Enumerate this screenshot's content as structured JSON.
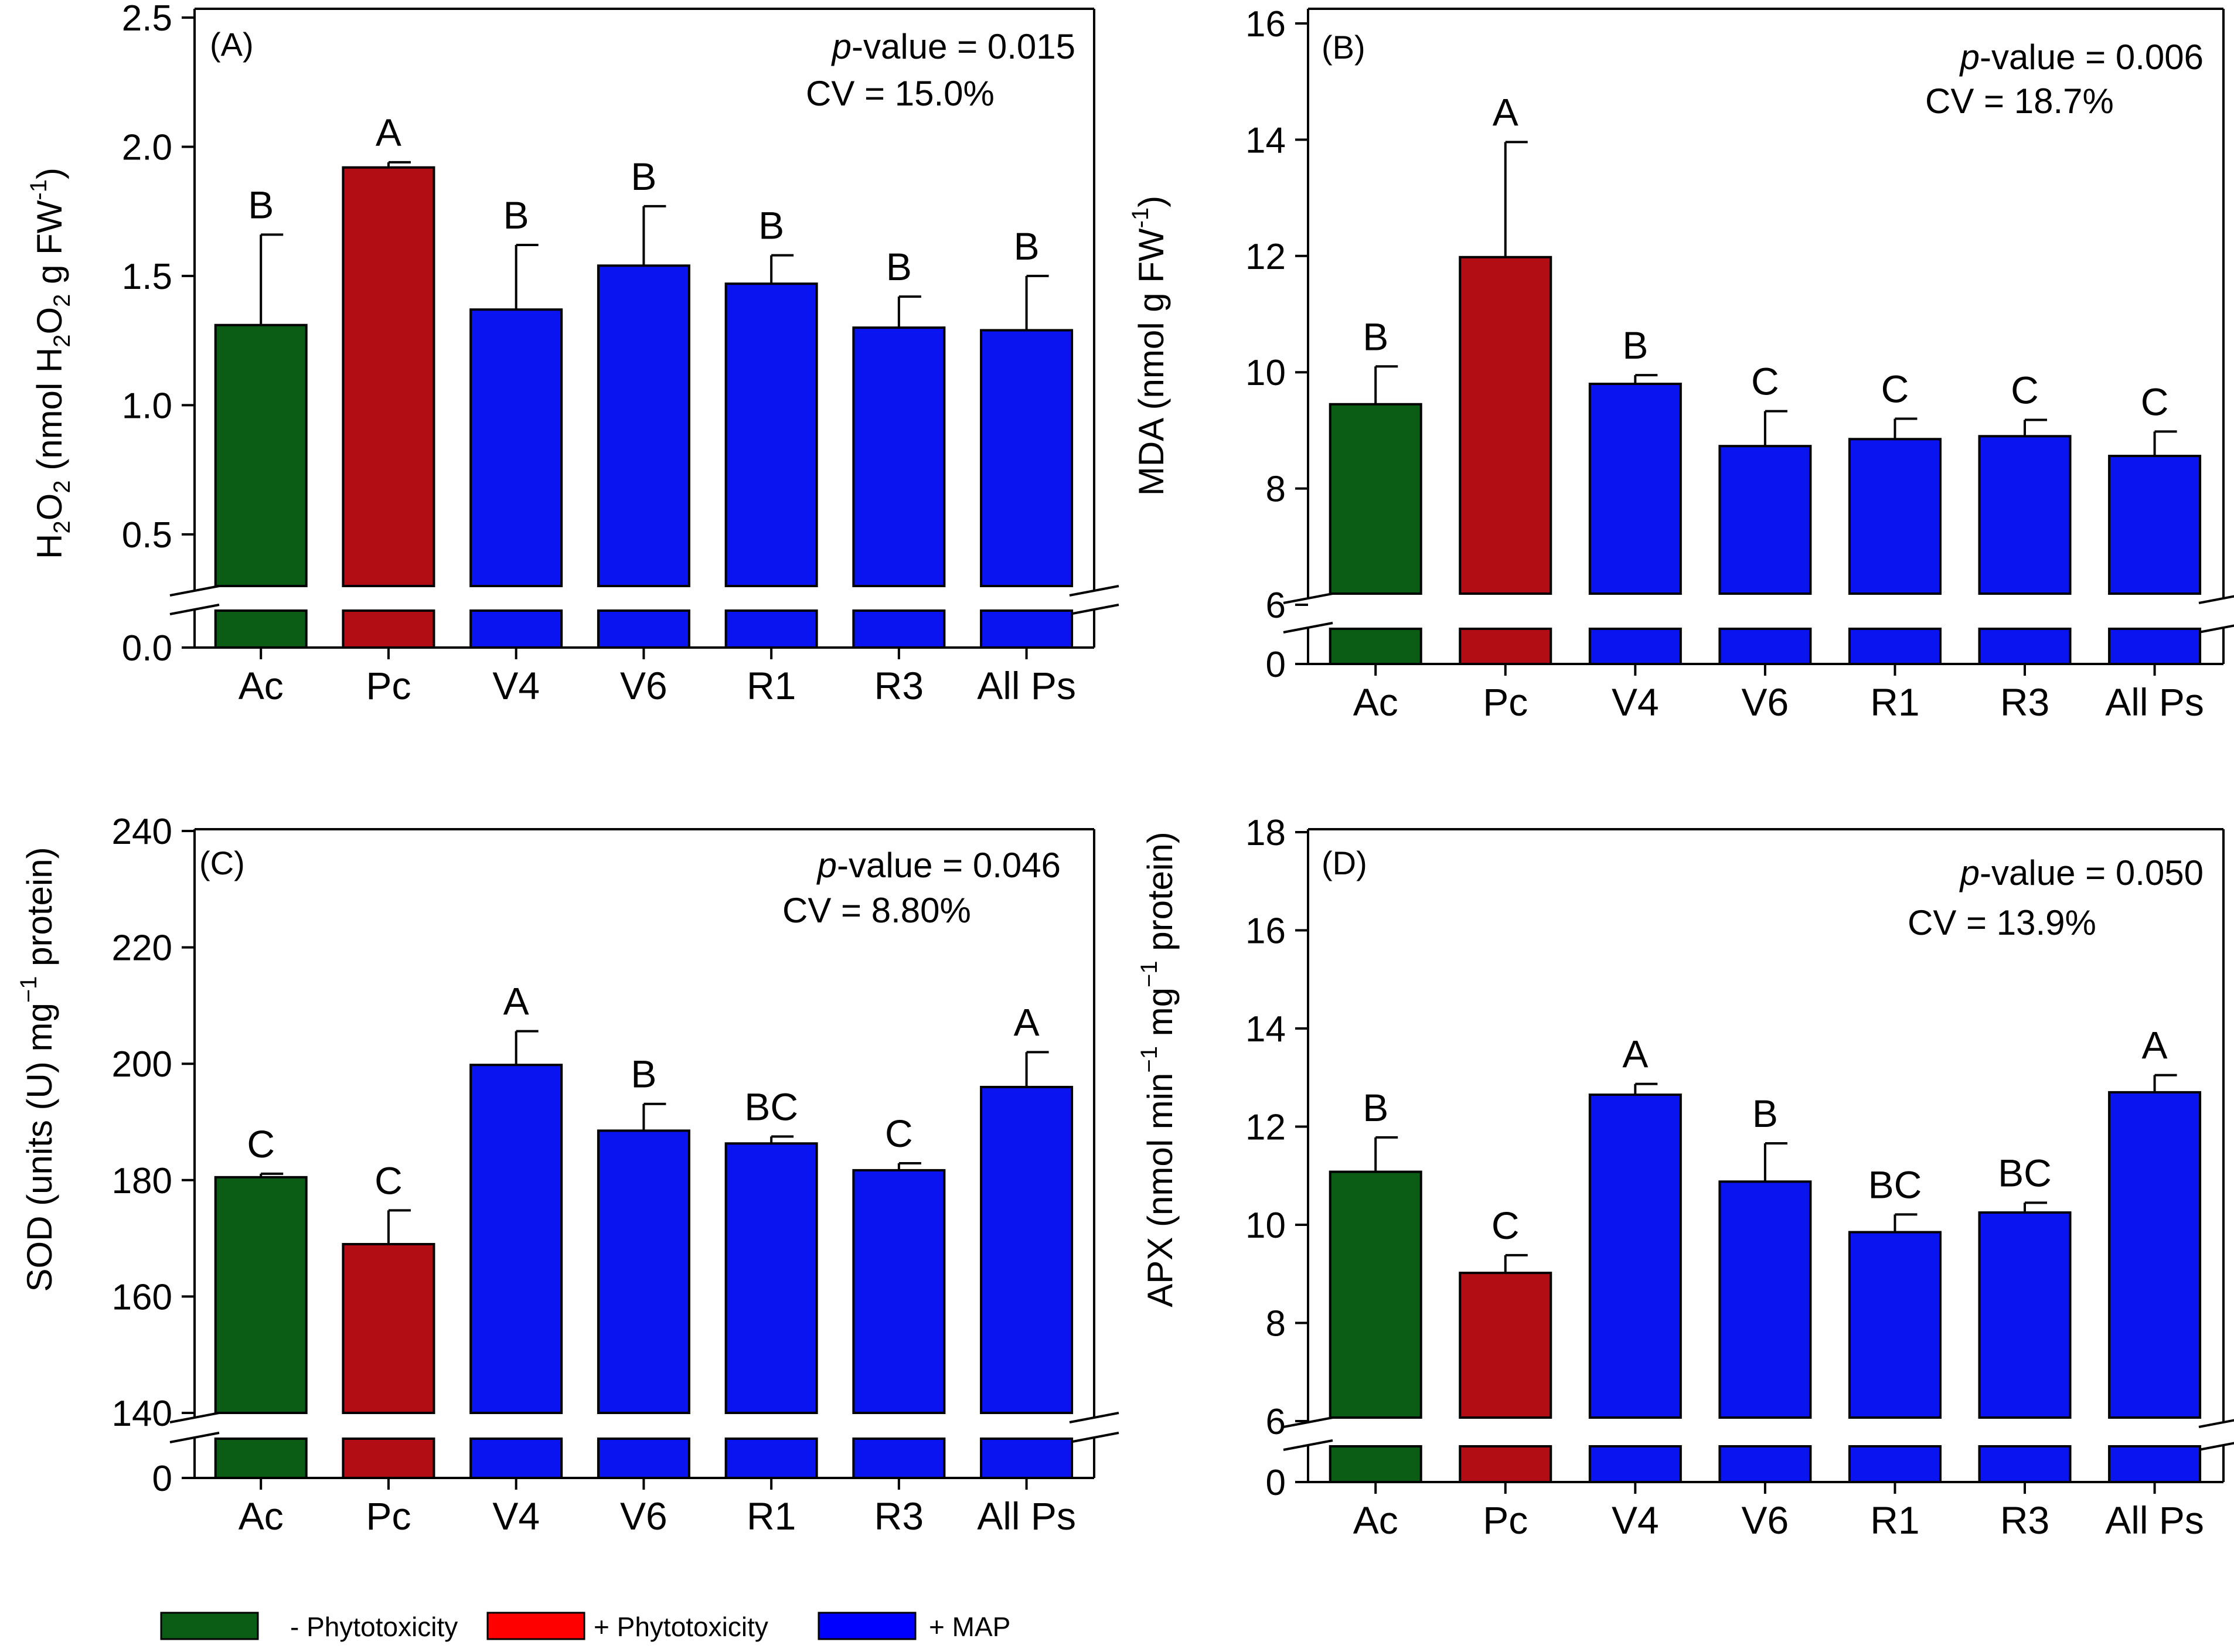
{
  "colors": {
    "ac": "#0b5d15",
    "pc": "#b20d14",
    "map": "#0a14f0",
    "legend_pc": "#ff0000",
    "legend_map": "#0000ff"
  },
  "legend": [
    {
      "label": "- Phytotoxicity",
      "color_key": "ac"
    },
    {
      "label": "+ Phytotoxicity",
      "color_key": "legend_pc"
    },
    {
      "label": "+ MAP",
      "color_key": "legend_map"
    }
  ],
  "chart_data": [
    {
      "type": "bar",
      "panel": "(A)",
      "stats": {
        "p_label": "p",
        "p_rest": "-value = 0.015",
        "cv": "CV = 15.0%"
      },
      "categories": [
        "Ac",
        "Pc",
        "V4",
        "V6",
        "R1",
        "R3",
        "All Ps"
      ],
      "values": [
        1.31,
        1.92,
        1.37,
        1.54,
        1.47,
        1.3,
        1.29
      ],
      "errors": [
        0.35,
        0.02,
        0.25,
        0.23,
        0.11,
        0.12,
        0.21
      ],
      "letters": [
        "B",
        "A",
        "B",
        "B",
        "B",
        "B",
        "B"
      ],
      "colors": [
        "ac",
        "pc",
        "map",
        "map",
        "map",
        "map",
        "map"
      ],
      "ylabel": "H2O2 (nmol H2O2 g FW-1)",
      "yticks": [
        "0.5",
        "1.0",
        "1.5",
        "2.0",
        "2.5"
      ],
      "ytick_values": [
        0.5,
        1.0,
        1.5,
        2.0,
        2.5
      ],
      "upper_range": [
        0.3,
        2.5
      ],
      "bottom_tick": "0.0",
      "axis_break": true
    },
    {
      "type": "bar",
      "panel": "(B)",
      "stats": {
        "p_label": "p",
        "p_rest": "-value = 0.006",
        "cv": "CV = 18.7%"
      },
      "categories": [
        "Ac",
        "Pc",
        "V4",
        "V6",
        "R1",
        "R3",
        "All Ps"
      ],
      "values": [
        9.45,
        11.98,
        9.8,
        8.73,
        8.85,
        8.9,
        8.56
      ],
      "errors": [
        0.65,
        1.98,
        0.15,
        0.6,
        0.35,
        0.28,
        0.42
      ],
      "letters": [
        "B",
        "A",
        "B",
        "C",
        "C",
        "C",
        "C"
      ],
      "colors": [
        "ac",
        "pc",
        "map",
        "map",
        "map",
        "map",
        "map"
      ],
      "ylabel": "MDA (nmol g FW-1)",
      "yticks": [
        "6",
        "8",
        "10",
        "12",
        "14",
        "16"
      ],
      "ytick_values": [
        6,
        8,
        10,
        12,
        14,
        16
      ],
      "upper_range": [
        6,
        16
      ],
      "bottom_tick": "0",
      "axis_break": true
    },
    {
      "type": "bar",
      "panel": "(C)",
      "stats": {
        "p_label": "p",
        "p_rest": "-value = 0.046",
        "cv": "CV = 8.80%"
      },
      "categories": [
        "Ac",
        "Pc",
        "V4",
        "V6",
        "R1",
        "R3",
        "All Ps"
      ],
      "values": [
        180.5,
        169.0,
        199.8,
        188.5,
        186.3,
        181.7,
        196.0
      ],
      "errors": [
        0.6,
        5.8,
        5.8,
        4.6,
        1.2,
        1.2,
        6.0
      ],
      "letters": [
        "C",
        "C",
        "A",
        "B",
        "BC",
        "C",
        "A"
      ],
      "colors": [
        "ac",
        "pc",
        "map",
        "map",
        "map",
        "map",
        "map"
      ],
      "ylabel": "SOD (units (U) mg−1 protein)",
      "yticks": [
        "140",
        "160",
        "180",
        "200",
        "220",
        "240"
      ],
      "ytick_values": [
        140,
        160,
        180,
        200,
        220,
        240
      ],
      "upper_range": [
        140,
        240
      ],
      "bottom_tick": "0",
      "axis_break": true
    },
    {
      "type": "bar",
      "panel": "(D)",
      "stats": {
        "p_label": "p",
        "p_rest": "-value = 0.050",
        "cv": "CV = 13.9%"
      },
      "categories": [
        "Ac",
        "Pc",
        "V4",
        "V6",
        "R1",
        "R3",
        "All Ps"
      ],
      "values": [
        11.08,
        9.02,
        12.65,
        10.88,
        9.85,
        10.25,
        12.7
      ],
      "errors": [
        0.7,
        0.36,
        0.22,
        0.78,
        0.36,
        0.2,
        0.35
      ],
      "letters": [
        "B",
        "C",
        "A",
        "B",
        "BC",
        "BC",
        "A"
      ],
      "colors": [
        "ac",
        "pc",
        "map",
        "map",
        "map",
        "map",
        "map"
      ],
      "ylabel": "APX (nmol min−1 mg−1 protein)",
      "yticks": [
        "6",
        "8",
        "10",
        "12",
        "14",
        "16",
        "18"
      ],
      "ytick_values": [
        6,
        8,
        10,
        12,
        14,
        16,
        18
      ],
      "upper_range": [
        6,
        18
      ],
      "bottom_tick": "0",
      "axis_break": true
    }
  ]
}
